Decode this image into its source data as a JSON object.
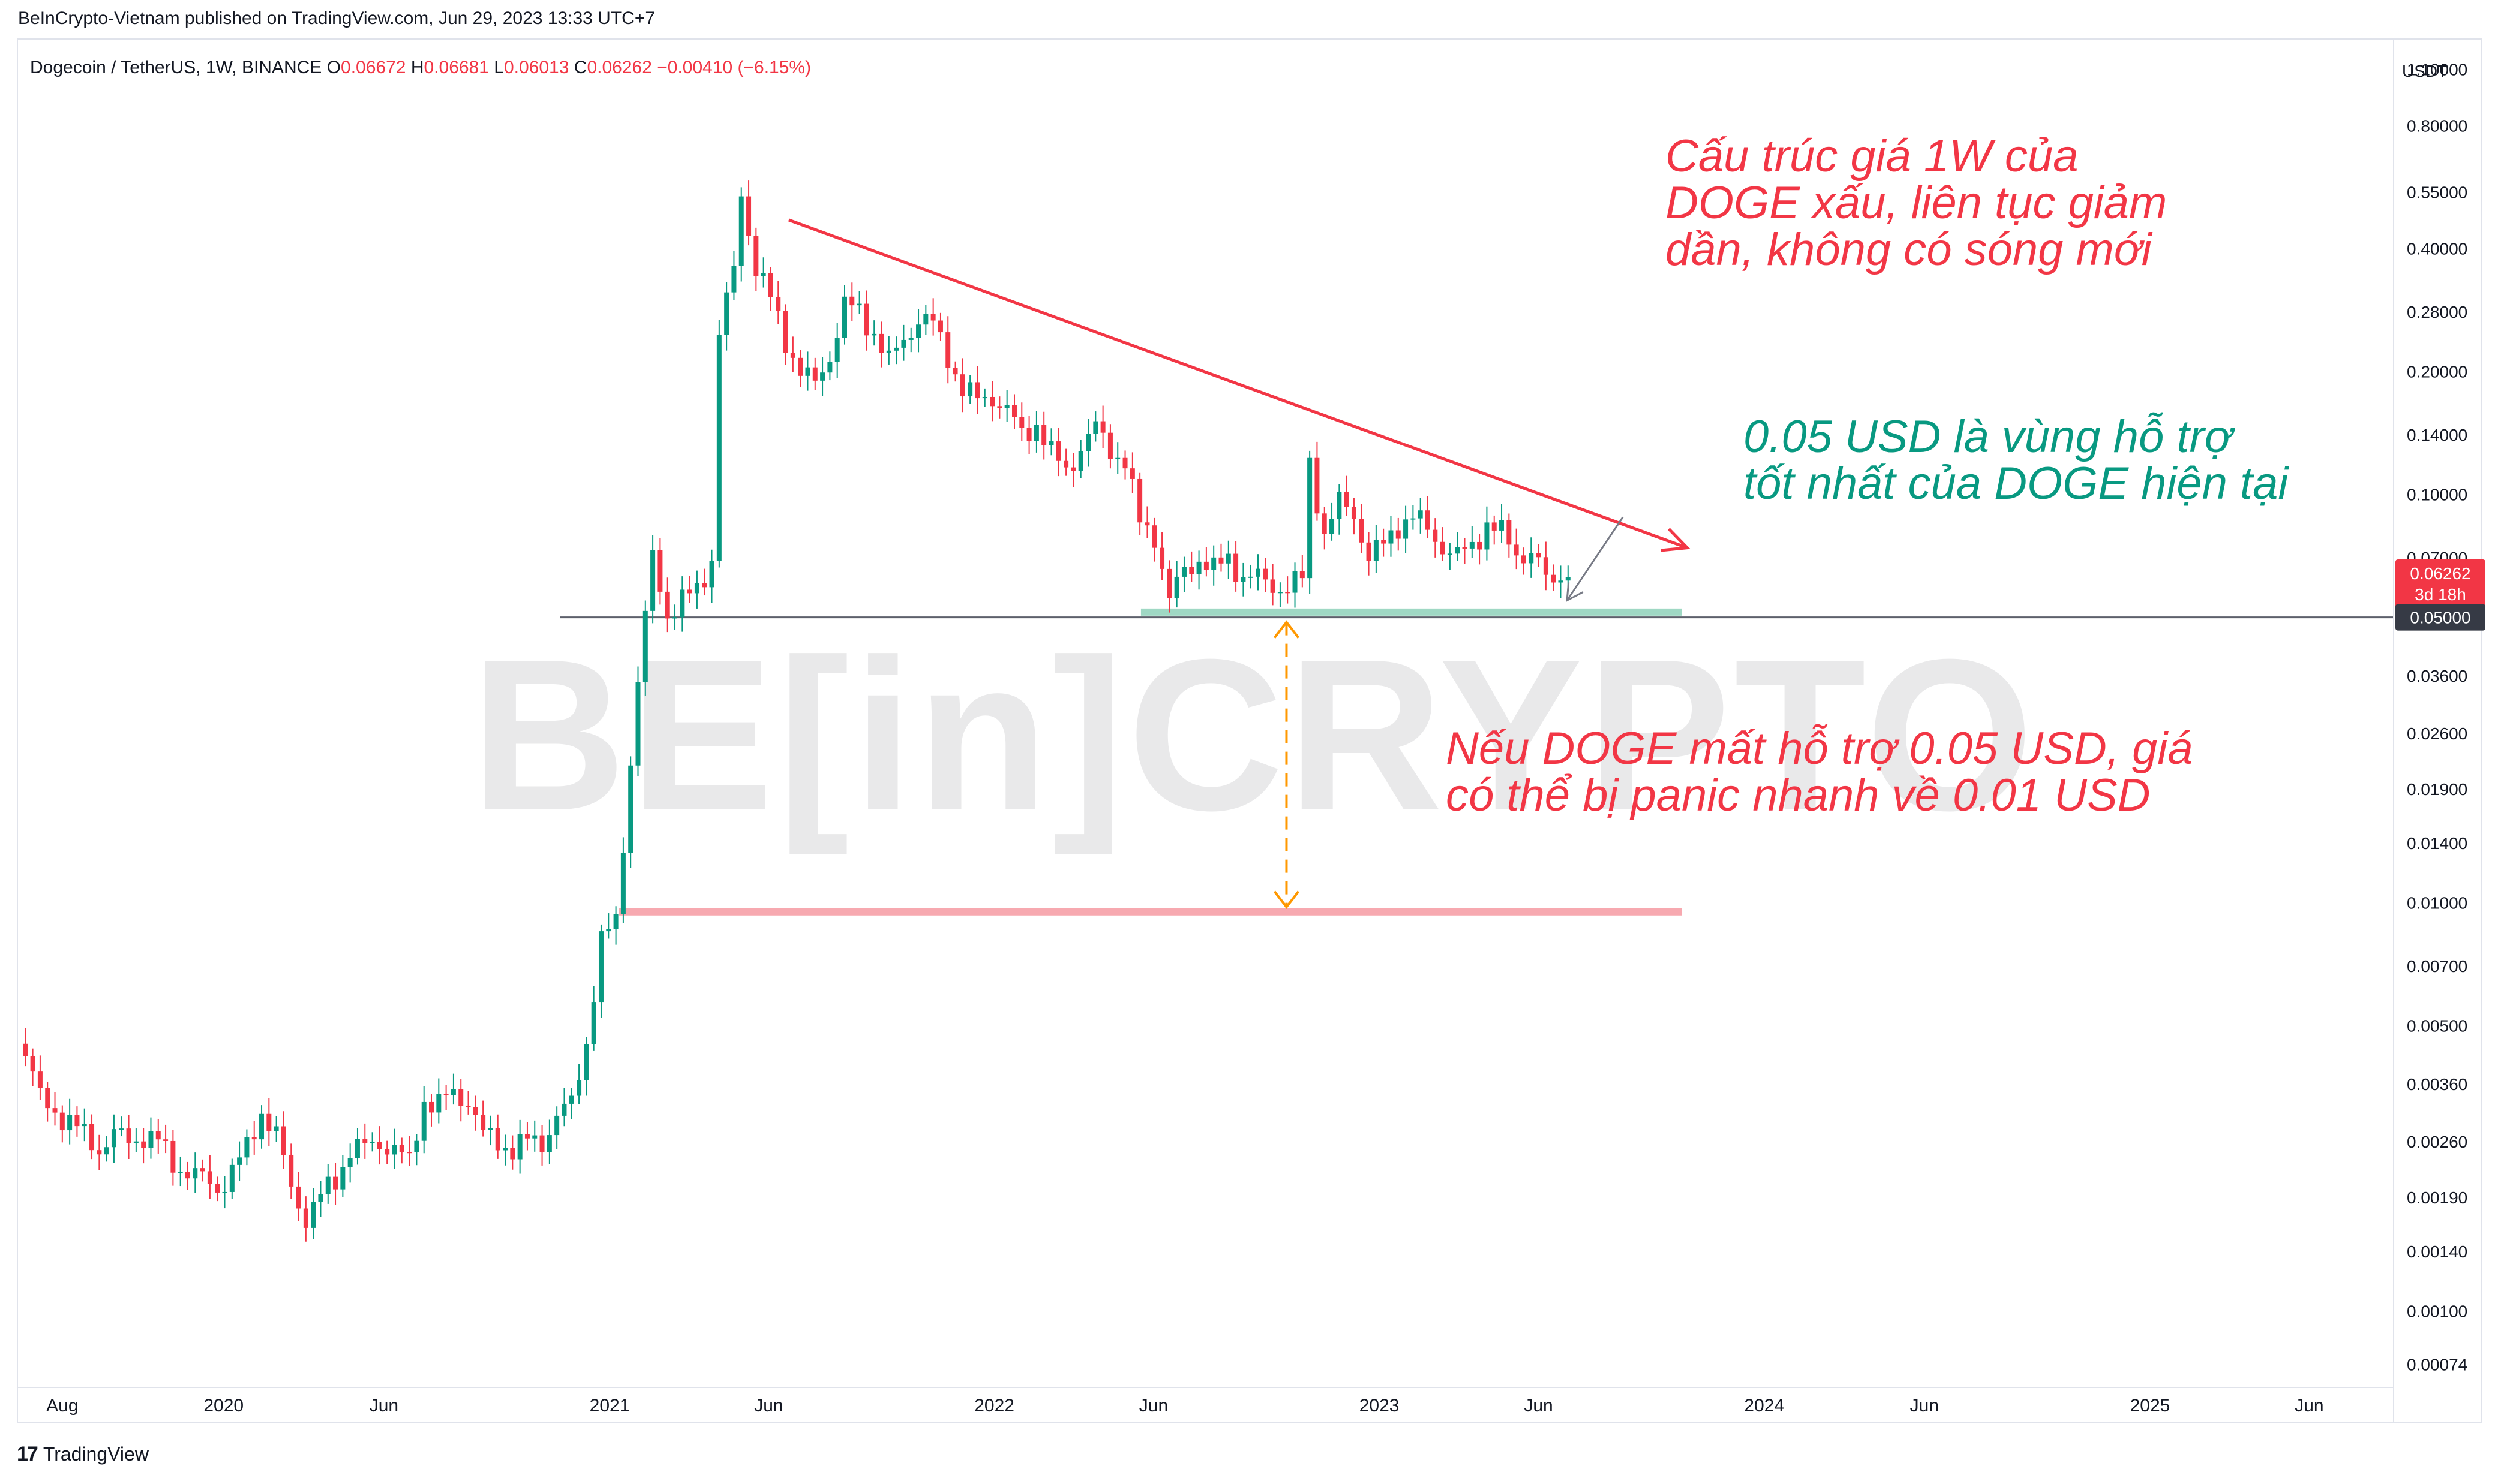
{
  "header": {
    "published": "BeInCrypto-Vietnam published on TradingView.com, Jun 29, 2023 13:33 UTC+7",
    "symbol": "Dogecoin / TetherUS, 1W, BINANCE",
    "ohlc": {
      "o_label": "O",
      "o_value": "0.06672",
      "h_label": "H",
      "h_value": "0.06681",
      "l_label": "L",
      "l_value": "0.06013",
      "c_label": "C",
      "c_value": "0.06262",
      "change": "−0.00410 (−6.15%)"
    }
  },
  "brand": {
    "logo": "17",
    "name": "TradingView"
  },
  "watermark": "BE[in]CRYPTO",
  "annotations": {
    "top": [
      "Cấu trúc giá 1W của",
      "DOGE xấu, liên tục giảm",
      "dần, không có sóng mới"
    ],
    "support": [
      "0.05 USD là vùng hỗ trợ",
      "tốt nhất của DOGE hiện tại"
    ],
    "panic": [
      "Nếu DOGE mất hỗ trợ 0.05 USD, giá",
      "có thể bị panic nhanh về 0.01 USD"
    ]
  },
  "colors": {
    "up": "#089981",
    "down": "#f23645",
    "trendline": "#f23645",
    "support_zone": "#9fd8c4",
    "target_line": "#f7a9b0",
    "arrow": "#ff9800",
    "hline": "#5d606b"
  },
  "chart_data": {
    "type": "candlestick",
    "title": "Dogecoin / TetherUS, 1W, BINANCE",
    "yscale": "log",
    "ylabel": "USDT",
    "ylim": [
      0.00065,
      1.3
    ],
    "xlim": [
      "2019-06-20",
      "2025-08-20"
    ],
    "y_ticks": [
      "1.10000",
      "0.80000",
      "0.55000",
      "0.40000",
      "0.28000",
      "0.20000",
      "0.14000",
      "0.10000",
      "0.07000",
      "0.03600",
      "0.02600",
      "0.01900",
      "0.01400",
      "0.01000",
      "0.00700",
      "0.00500",
      "0.00360",
      "0.00260",
      "0.00190",
      "0.00140",
      "0.00100",
      "0.00074"
    ],
    "x_ticks": [
      {
        "label": "Aug",
        "date": "2019-08-01"
      },
      {
        "label": "2020",
        "date": "2020-01-01"
      },
      {
        "label": "Jun",
        "date": "2020-06-01"
      },
      {
        "label": "2021",
        "date": "2021-01-01"
      },
      {
        "label": "Jun",
        "date": "2021-06-01"
      },
      {
        "label": "2022",
        "date": "2022-01-01"
      },
      {
        "label": "Jun",
        "date": "2022-06-01"
      },
      {
        "label": "2023",
        "date": "2023-01-01"
      },
      {
        "label": "Jun",
        "date": "2023-06-01"
      },
      {
        "label": "2024",
        "date": "2024-01-01"
      },
      {
        "label": "Jun",
        "date": "2024-06-01"
      },
      {
        "label": "2025",
        "date": "2025-01-01"
      },
      {
        "label": "Jun",
        "date": "2025-06-01"
      }
    ],
    "last_price": {
      "value": 0.06262,
      "label": "0.06262",
      "countdown": "3d 18h"
    },
    "support_level": {
      "value": 0.05,
      "label": "0.05000"
    },
    "series": [
      {
        "date": "2019-06-27",
        "close": 0.0043
      },
      {
        "date": "2019-07-11",
        "close": 0.0033
      },
      {
        "date": "2019-07-25",
        "close": 0.0031
      },
      {
        "date": "2019-08-08",
        "close": 0.0029
      },
      {
        "date": "2019-08-22",
        "close": 0.0027
      },
      {
        "date": "2019-09-05",
        "close": 0.0025
      },
      {
        "date": "2019-09-19",
        "close": 0.0027
      },
      {
        "date": "2019-10-03",
        "close": 0.0026
      },
      {
        "date": "2019-10-17",
        "close": 0.0027
      },
      {
        "date": "2019-10-31",
        "close": 0.0026
      },
      {
        "date": "2019-11-14",
        "close": 0.0023
      },
      {
        "date": "2019-11-28",
        "close": 0.0022
      },
      {
        "date": "2019-12-12",
        "close": 0.0021
      },
      {
        "date": "2019-12-26",
        "close": 0.002
      },
      {
        "date": "2020-01-09",
        "close": 0.0022
      },
      {
        "date": "2020-01-23",
        "close": 0.0025
      },
      {
        "date": "2020-02-06",
        "close": 0.0031
      },
      {
        "date": "2020-02-20",
        "close": 0.0027
      },
      {
        "date": "2020-03-05",
        "close": 0.002
      },
      {
        "date": "2020-03-19",
        "close": 0.0017
      },
      {
        "date": "2020-04-02",
        "close": 0.0019
      },
      {
        "date": "2020-04-16",
        "close": 0.0021
      },
      {
        "date": "2020-04-30",
        "close": 0.0025
      },
      {
        "date": "2020-05-14",
        "close": 0.0025
      },
      {
        "date": "2020-05-28",
        "close": 0.0026
      },
      {
        "date": "2020-06-11",
        "close": 0.0025
      },
      {
        "date": "2020-06-25",
        "close": 0.0023
      },
      {
        "date": "2020-07-09",
        "close": 0.0033
      },
      {
        "date": "2020-07-23",
        "close": 0.0032
      },
      {
        "date": "2020-08-06",
        "close": 0.0034
      },
      {
        "date": "2020-08-20",
        "close": 0.0033
      },
      {
        "date": "2020-09-03",
        "close": 0.0027
      },
      {
        "date": "2020-09-17",
        "close": 0.0026
      },
      {
        "date": "2020-10-01",
        "close": 0.0025
      },
      {
        "date": "2020-10-15",
        "close": 0.0026
      },
      {
        "date": "2020-10-29",
        "close": 0.0026
      },
      {
        "date": "2020-11-12",
        "close": 0.003
      },
      {
        "date": "2020-11-26",
        "close": 0.0032
      },
      {
        "date": "2020-12-10",
        "close": 0.0046
      },
      {
        "date": "2020-12-24",
        "close": 0.008
      },
      {
        "date": "2021-01-07",
        "close": 0.009
      },
      {
        "date": "2021-01-28",
        "close": 0.035
      },
      {
        "date": "2021-02-11",
        "close": 0.07
      },
      {
        "date": "2021-02-25",
        "close": 0.051
      },
      {
        "date": "2021-03-11",
        "close": 0.055
      },
      {
        "date": "2021-03-25",
        "close": 0.058
      },
      {
        "date": "2021-04-08",
        "close": 0.07
      },
      {
        "date": "2021-04-15",
        "close": 0.25
      },
      {
        "date": "2021-04-29",
        "close": 0.35
      },
      {
        "date": "2021-05-06",
        "close": 0.55
      },
      {
        "date": "2021-05-20",
        "close": 0.36
      },
      {
        "date": "2021-06-03",
        "close": 0.3
      },
      {
        "date": "2021-06-17",
        "close": 0.24
      },
      {
        "date": "2021-07-01",
        "close": 0.2
      },
      {
        "date": "2021-07-15",
        "close": 0.185
      },
      {
        "date": "2021-07-29",
        "close": 0.22
      },
      {
        "date": "2021-08-12",
        "close": 0.29
      },
      {
        "date": "2021-08-26",
        "close": 0.28
      },
      {
        "date": "2021-09-09",
        "close": 0.25
      },
      {
        "date": "2021-09-23",
        "close": 0.21
      },
      {
        "date": "2021-10-07",
        "close": 0.24
      },
      {
        "date": "2021-10-21",
        "close": 0.27
      },
      {
        "date": "2021-11-04",
        "close": 0.26
      },
      {
        "date": "2021-11-18",
        "close": 0.22
      },
      {
        "date": "2021-12-02",
        "close": 0.18
      },
      {
        "date": "2021-12-16",
        "close": 0.17
      },
      {
        "date": "2021-12-30",
        "close": 0.175
      },
      {
        "date": "2022-01-13",
        "close": 0.16
      },
      {
        "date": "2022-01-27",
        "close": 0.14
      },
      {
        "date": "2022-02-10",
        "close": 0.15
      },
      {
        "date": "2022-02-24",
        "close": 0.125
      },
      {
        "date": "2022-03-10",
        "close": 0.115
      },
      {
        "date": "2022-03-24",
        "close": 0.13
      },
      {
        "date": "2022-04-07",
        "close": 0.145
      },
      {
        "date": "2022-04-21",
        "close": 0.13
      },
      {
        "date": "2022-05-05",
        "close": 0.12
      },
      {
        "date": "2022-05-19",
        "close": 0.085
      },
      {
        "date": "2022-06-02",
        "close": 0.08
      },
      {
        "date": "2022-06-16",
        "close": 0.055
      },
      {
        "date": "2022-06-30",
        "close": 0.065
      },
      {
        "date": "2022-07-14",
        "close": 0.07
      },
      {
        "date": "2022-07-28",
        "close": 0.065
      },
      {
        "date": "2022-08-11",
        "close": 0.07
      },
      {
        "date": "2022-08-25",
        "close": 0.063
      },
      {
        "date": "2022-09-08",
        "close": 0.062
      },
      {
        "date": "2022-09-22",
        "close": 0.06
      },
      {
        "date": "2022-10-06",
        "close": 0.059
      },
      {
        "date": "2022-10-20",
        "close": 0.062
      },
      {
        "date": "2022-10-27",
        "close": 0.12
      },
      {
        "date": "2022-11-10",
        "close": 0.08
      },
      {
        "date": "2022-11-24",
        "close": 0.095
      },
      {
        "date": "2022-12-08",
        "close": 0.09
      },
      {
        "date": "2022-12-22",
        "close": 0.07
      },
      {
        "date": "2023-01-05",
        "close": 0.075
      },
      {
        "date": "2023-01-19",
        "close": 0.085
      },
      {
        "date": "2023-02-02",
        "close": 0.088
      },
      {
        "date": "2023-02-16",
        "close": 0.082
      },
      {
        "date": "2023-03-02",
        "close": 0.075
      },
      {
        "date": "2023-03-16",
        "close": 0.07
      },
      {
        "date": "2023-03-30",
        "close": 0.075
      },
      {
        "date": "2023-04-13",
        "close": 0.085
      },
      {
        "date": "2023-04-27",
        "close": 0.08
      },
      {
        "date": "2023-05-11",
        "close": 0.072
      },
      {
        "date": "2023-05-25",
        "close": 0.072
      },
      {
        "date": "2023-06-08",
        "close": 0.062
      },
      {
        "date": "2023-06-15",
        "close": 0.06
      },
      {
        "date": "2023-06-22",
        "close": 0.06672
      },
      {
        "date": "2023-06-29",
        "close": 0.06262
      }
    ],
    "drawings": {
      "trendline": {
        "from": {
          "date": "2021-06-20",
          "value": 0.47
        },
        "to": {
          "date": "2023-10-20",
          "value": 0.074
        }
      },
      "support_zone": {
        "value": 0.0515,
        "from": "2022-05-20",
        "to": "2023-10-15"
      },
      "support_hline": {
        "value": 0.05,
        "from": "2020-11-15"
      },
      "target_line": {
        "value": 0.0095,
        "from": "2021-01-10",
        "to": "2023-10-15"
      },
      "target_arrow": {
        "date": "2022-10-05",
        "from": 0.05,
        "to": 0.0095
      },
      "pointer_arrow": {
        "from": {
          "date": "2023-08-20",
          "value": 0.088
        },
        "to": {
          "date": "2023-06-28",
          "value": 0.055
        }
      }
    }
  }
}
